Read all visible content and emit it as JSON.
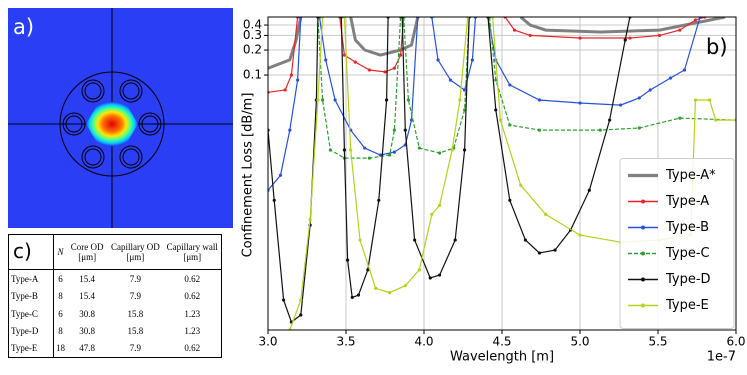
{
  "panel_a": {
    "label": "a)"
  },
  "panel_c": {
    "label": "c)",
    "table": {
      "header": [
        "N",
        "Core OD [μm]",
        "Capillary OD [μm]",
        "Capillary wall [μm]"
      ],
      "rows": [
        [
          "Type-A",
          6,
          15.4,
          7.9,
          0.62
        ],
        [
          "Type-B",
          8,
          15.4,
          7.9,
          0.62
        ],
        [
          "Type-C",
          6,
          30.8,
          15.8,
          1.23
        ],
        [
          "Type-D",
          8,
          30.8,
          15.8,
          1.23
        ],
        [
          "Type-E",
          18,
          47.8,
          7.9,
          0.62
        ]
      ]
    }
  },
  "chart_data": {
    "type": "line",
    "panel_label": "b)",
    "x_label": "Wavelength [m]",
    "x_offset": "1e-7",
    "y_label": "Confinement Loss [dB/m]",
    "xlim": [
      3.0,
      6.0
    ],
    "xticks": [
      {
        "value": 3,
        "label": "3.0"
      },
      {
        "value": 3.5,
        "label": "3.5"
      },
      {
        "value": 4,
        "label": "4.0"
      },
      {
        "value": 4.5,
        "label": "4.5"
      },
      {
        "value": 5,
        "label": "5.0"
      },
      {
        "value": 5.5,
        "label": "5.5"
      },
      {
        "value": 6,
        "label": "6.0"
      }
    ],
    "ylim": [
      8.5e-05,
      0.5
    ],
    "yticks": [
      0.1,
      0.2,
      0.3,
      0.4
    ],
    "y_log": true,
    "grid": true,
    "legend": "center right",
    "series": [
      {
        "name": "Type-A*",
        "color": "#808080",
        "width": 3,
        "marker": false,
        "dash": false,
        "x": [
          3.0,
          3.14,
          3.18,
          3.21,
          3.4,
          3.53,
          3.56,
          3.62,
          3.72,
          3.85,
          3.92,
          3.96,
          4.3,
          4.62,
          4.68,
          4.78,
          5.13,
          5.51,
          5.77,
          5.93
        ],
        "values": [
          0.121,
          0.152,
          0.264,
          0.5,
          null,
          0.5,
          0.264,
          0.2,
          0.174,
          0.2,
          0.23,
          0.5,
          null,
          0.5,
          0.4,
          0.348,
          0.33,
          0.348,
          0.435,
          0.5
        ]
      },
      {
        "name": "Type-A",
        "color": "#e8262a",
        "width": 1.2,
        "marker": true,
        "dash": false,
        "x": [
          3.0,
          3.11,
          3.15,
          3.19,
          3.3,
          3.46,
          3.49,
          3.56,
          3.65,
          3.75,
          3.81,
          3.85,
          3.87,
          4.2,
          4.52,
          4.58,
          4.68,
          5.0,
          5.32,
          5.51,
          5.64,
          5.74,
          5.8
        ],
        "values": [
          0.062,
          0.066,
          0.1,
          0.5,
          null,
          0.5,
          0.174,
          0.143,
          0.115,
          0.109,
          0.121,
          0.174,
          0.5,
          null,
          0.5,
          0.348,
          0.3,
          0.279,
          0.279,
          0.3,
          0.348,
          0.46,
          0.5
        ]
      },
      {
        "name": "Type-B",
        "color": "#2850e0",
        "width": 1.2,
        "marker": true,
        "dash": false,
        "x": [
          3.0,
          3.08,
          3.14,
          3.19,
          3.21,
          3.27,
          3.33,
          3.37,
          3.43,
          3.53,
          3.62,
          3.72,
          3.81,
          3.88,
          3.92,
          3.96,
          4.0,
          4.05,
          4.09,
          4.17,
          4.26,
          4.31,
          4.33,
          4.37,
          4.41,
          4.46,
          4.55,
          4.74,
          5.0,
          5.26,
          5.38,
          5.45,
          5.58,
          5.67,
          5.77
        ],
        "values": [
          0.0041,
          0.0062,
          0.0217,
          0.087,
          0.5,
          null,
          0.5,
          0.152,
          0.05,
          0.0217,
          0.0132,
          0.0109,
          0.0118,
          0.0144,
          0.0287,
          0.5,
          null,
          0.5,
          0.152,
          0.087,
          0.066,
          0.152,
          0.5,
          null,
          0.5,
          0.152,
          0.076,
          0.05,
          0.046,
          0.0435,
          0.053,
          0.066,
          0.092,
          0.115,
          0.5
        ]
      },
      {
        "name": "Type-C",
        "color": "#2ca02c",
        "width": 1.2,
        "marker": true,
        "dash": true,
        "x": [
          3.32,
          3.35,
          3.4,
          3.49,
          3.65,
          3.78,
          3.81,
          3.85,
          3.86,
          3.87,
          3.9,
          3.97,
          4.1,
          4.19,
          4.26,
          4.29,
          4.35,
          4.42,
          4.46,
          4.55,
          4.74,
          5.13,
          5.38,
          5.64,
          6.0
        ],
        "values": [
          0.5,
          0.05,
          0.0125,
          0.01,
          0.01,
          0.0109,
          0.0217,
          0.5,
          null,
          0.5,
          0.05,
          0.0132,
          0.0115,
          0.0132,
          0.038,
          0.5,
          null,
          0.5,
          0.087,
          0.025,
          0.0217,
          0.0217,
          0.023,
          0.0303,
          0.0287
        ]
      },
      {
        "name": "Type-D",
        "color": "#111111",
        "width": 1.2,
        "marker": true,
        "dash": false,
        "x": [
          3.0,
          3.04,
          3.1,
          3.15,
          3.21,
          3.27,
          3.31,
          3.32,
          3.4,
          3.47,
          3.49,
          3.51,
          3.54,
          3.58,
          3.64,
          3.71,
          3.76,
          3.77,
          3.8,
          3.86,
          3.88,
          3.94,
          4.04,
          4.1,
          4.2,
          4.26,
          4.29,
          4.35,
          4.41,
          4.46,
          4.55,
          4.65,
          4.74,
          4.84,
          4.94,
          5.06,
          5.19,
          5.29,
          5.32
        ],
        "values": [
          0.0217,
          0.0031,
          0.000195,
          0.000106,
          0.000129,
          0.00156,
          0.05,
          0.5,
          null,
          0.5,
          0.0125,
          0.00059,
          0.00021,
          0.000224,
          0.00045,
          0.0031,
          0.05,
          0.5,
          null,
          0.5,
          0.0217,
          0.00103,
          0.00036,
          0.00039,
          0.00103,
          0.0125,
          0.5,
          null,
          0.5,
          0.038,
          0.0031,
          0.00103,
          0.00072,
          0.00078,
          0.00136,
          0.0041,
          0.0287,
          0.264,
          0.5
        ]
      },
      {
        "name": "Type-E",
        "color": "#b2d41a",
        "width": 1.2,
        "marker": true,
        "dash": false,
        "x": [
          3.14,
          3.21,
          3.27,
          3.32,
          3.35,
          3.4,
          3.49,
          3.53,
          3.59,
          3.69,
          3.78,
          3.88,
          3.97,
          4.05,
          4.1,
          4.18,
          4.23,
          4.28,
          4.35,
          4.44,
          4.49,
          4.62,
          4.78,
          5.0,
          5.26,
          5.51,
          5.71,
          5.74,
          5.83,
          5.87,
          6.0
        ],
        "values": [
          8.5e-05,
          0.000195,
          0.0018,
          0.05,
          0.5,
          null,
          0.5,
          0.0125,
          0.00103,
          0.00027,
          0.00024,
          0.00029,
          0.00045,
          0.0021,
          0.0027,
          0.0125,
          0.05,
          0.5,
          null,
          0.5,
          0.0287,
          0.0047,
          0.0021,
          0.00118,
          0.00097,
          0.00103,
          0.00118,
          0.05,
          0.05,
          0.0287,
          0.0287
        ]
      }
    ]
  }
}
